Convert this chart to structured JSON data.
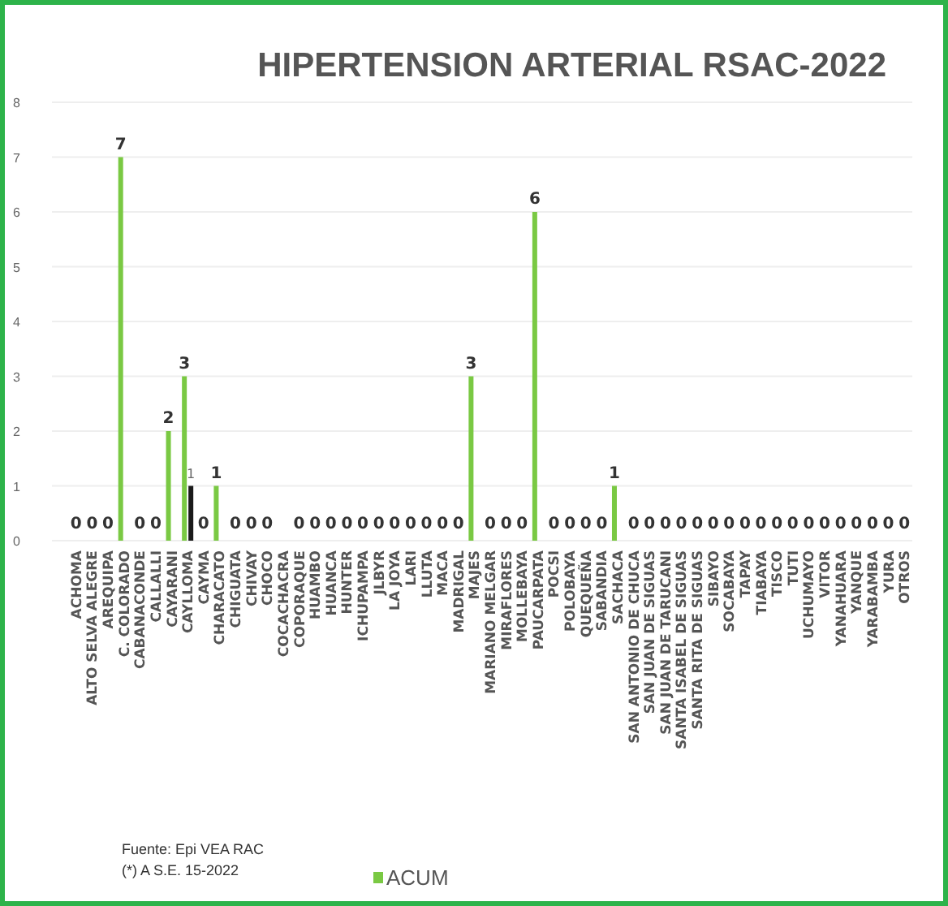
{
  "chart_data": {
    "type": "bar",
    "title": "HIPERTENSION ARTERIAL RSAC-2022",
    "categories": [
      "ACHOMA",
      "ALTO SELVA ALEGRE",
      "AREQUIPA",
      "C. COLORADO",
      "CABANACONDE",
      "CALLALLI",
      "CAYARANI",
      "CAYLLOMA",
      "CAYMA",
      "CHARACATO",
      "CHIGUATA",
      "CHIVAY",
      "CHOCO",
      "COCACHACRA",
      "COPORAQUE",
      "HUAMBO",
      "HUANCA",
      "HUNTER",
      "ICHUPAMPA",
      "JLBYR",
      "LA JOYA",
      "LARI",
      "LLUTA",
      "MACA",
      "MADRIGAL",
      "MAJES",
      "MARIANO MELGAR",
      "MIRAFLORES",
      "MOLLEBAYA",
      "PAUCARPATA",
      "POCSI",
      "POLOBAYA",
      "QUEQUEÑA",
      "SABANDIA",
      "SACHACA",
      "SAN ANTONIO DE CHUCA",
      "SAN JUAN DE SIGUAS",
      "SAN JUAN DE TARUCANI",
      "SANTA ISABEL DE SIGUAS",
      "SANTA RITA DE SIGUAS",
      "SIBAYO",
      "SOCABAYA",
      "TAPAY",
      "TIABAYA",
      "TISCO",
      "TUTI",
      "UCHUMAYO",
      "VITOR",
      "YANAHUARA",
      "YANQUE",
      "YARABAMBA",
      "YURA",
      "OTROS"
    ],
    "series": [
      {
        "name": "ACUM",
        "color": "#7ac943",
        "values": [
          0,
          0,
          0,
          7,
          0,
          0,
          2,
          3,
          0,
          1,
          0,
          0,
          0,
          null,
          0,
          0,
          0,
          0,
          0,
          0,
          0,
          0,
          0,
          0,
          0,
          3,
          0,
          0,
          0,
          6,
          0,
          0,
          0,
          0,
          1,
          0,
          0,
          0,
          0,
          0,
          0,
          0,
          0,
          0,
          0,
          0,
          0,
          0,
          0,
          0,
          0,
          0,
          0
        ]
      },
      {
        "color": "#1a1a1a",
        "values": [
          null,
          null,
          null,
          null,
          null,
          null,
          null,
          1,
          null,
          null,
          null,
          null,
          null,
          null,
          null,
          null,
          null,
          null,
          null,
          null,
          null,
          null,
          null,
          null,
          null,
          null,
          null,
          null,
          null,
          null,
          null,
          null,
          null,
          null,
          null,
          null,
          null,
          null,
          null,
          null,
          null,
          null,
          null,
          null,
          null,
          null,
          null,
          null,
          null,
          null,
          null,
          null,
          null
        ]
      }
    ],
    "ylim": [
      0,
      8
    ],
    "yticks": [
      0,
      1,
      2,
      3,
      4,
      5,
      6,
      7,
      8
    ],
    "grid": "y",
    "data_labels": true,
    "legend": "bottom",
    "annotations": [
      "Fuente:  Epi VEA RAC",
      "(*) A S.E. 15-2022"
    ]
  }
}
